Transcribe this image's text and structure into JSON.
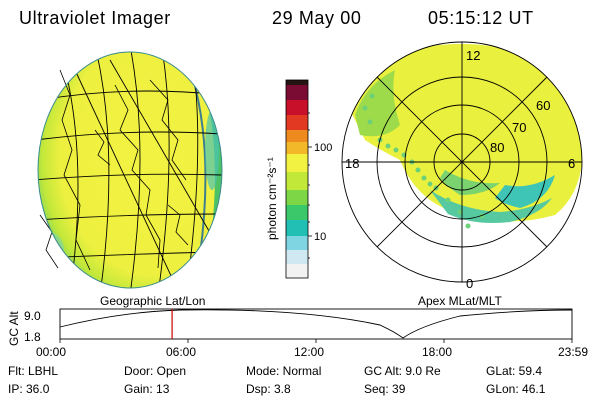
{
  "header": {
    "instrument": "Ultraviolet Imager",
    "date": "29 May 00",
    "time": "05:15:12 UT"
  },
  "colorbar": {
    "label": "photon cm⁻²s⁻¹",
    "ticks": [
      "100",
      "10"
    ],
    "scale": "log",
    "colors": [
      "#f2f2f2",
      "#cfe8f2",
      "#7fd6e2",
      "#22c0b4",
      "#3ac86a",
      "#7cd645",
      "#c2e83a",
      "#f2f242",
      "#f2b82a",
      "#ef8a1e",
      "#e23a22",
      "#c8102a",
      "#7a0c34",
      "#241414"
    ]
  },
  "left_panel": {
    "label": "Geographic Lat/Lon"
  },
  "right_panel": {
    "label": "Apex MLat/MLT",
    "mlt_labels": [
      "12",
      "18",
      "6",
      "0"
    ],
    "mlat_labels": [
      "60",
      "70",
      "80"
    ]
  },
  "orbit_plot": {
    "ylabel": "GC Alt",
    "yticks": [
      "9.0",
      "1.8"
    ],
    "xticks": [
      "00:00",
      "06:00",
      "12:00",
      "18:00",
      "23:59"
    ],
    "current_time_hours": 5.25,
    "line_color": "#cc0000"
  },
  "info": {
    "flt": "Flt: LBHL",
    "ip": "IP: 36.0",
    "door": "Door: Open",
    "gain": "Gain: 13",
    "mode": "Mode: Normal",
    "dsp": "Dsp:    3.8",
    "gc_alt": "GC Alt: 9.0 Re",
    "seq": "Seq: 39",
    "glat": "GLat:  59.4",
    "glon": "GLon:  46.1"
  }
}
